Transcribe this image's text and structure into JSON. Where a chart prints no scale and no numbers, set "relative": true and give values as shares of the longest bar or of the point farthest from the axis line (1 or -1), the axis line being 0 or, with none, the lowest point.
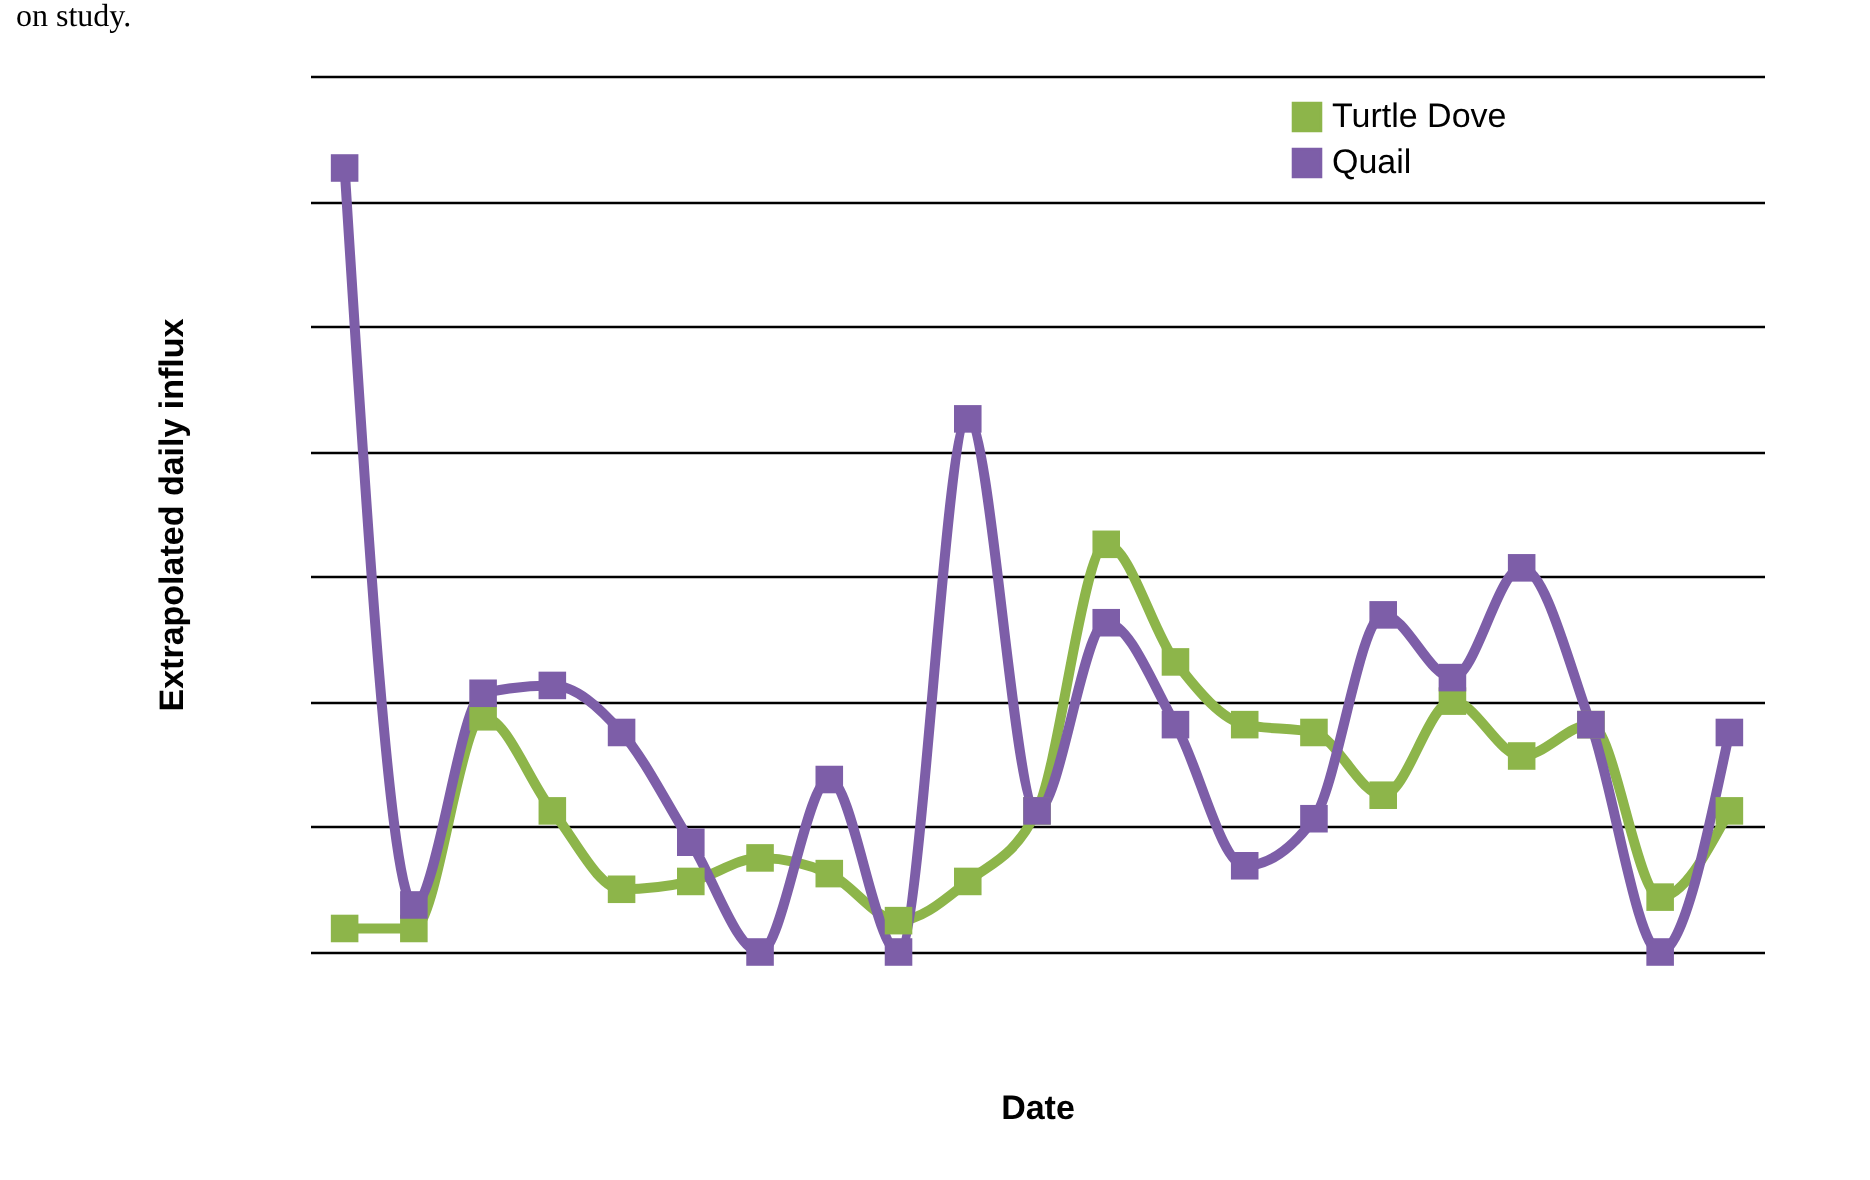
{
  "chart_data": {
    "type": "line",
    "relative": true,
    "xlabel": "Date",
    "ylabel": "Extrapolated daily influx",
    "annotations": [
      "on study."
    ],
    "categories": [
      null,
      null,
      null,
      null,
      null,
      null,
      null,
      null,
      null,
      null,
      null,
      null,
      null,
      null,
      null,
      null,
      null,
      null,
      null,
      null,
      null
    ],
    "series": [
      {
        "name": "Turtle Dove",
        "color": "#8db54a",
        "values": [
          0.03,
          0.03,
          0.3,
          0.18,
          0.08,
          0.09,
          0.12,
          0.1,
          0.04,
          0.09,
          0.18,
          0.52,
          0.37,
          0.29,
          0.28,
          0.2,
          0.32,
          0.25,
          0.29,
          0.07,
          0.18
        ]
      },
      {
        "name": "Quail",
        "color": "#7d5ea8",
        "values": [
          1,
          0.06,
          0.33,
          0.34,
          0.28,
          0.14,
          0,
          0.22,
          0,
          0.68,
          0.18,
          0.42,
          0.29,
          0.11,
          0.17,
          0.43,
          0.35,
          0.49,
          0.29,
          0,
          0.28
        ]
      }
    ],
    "grid": "y",
    "legend": "top right",
    "marker": "square",
    "line_style": "solid"
  }
}
